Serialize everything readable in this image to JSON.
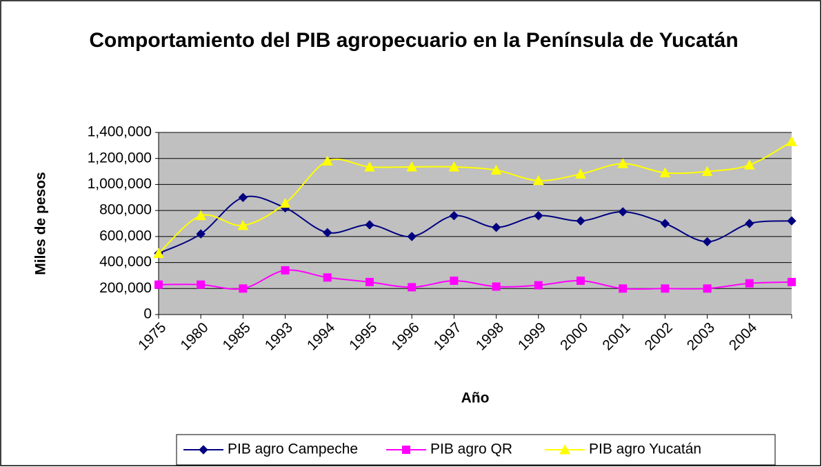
{
  "chart_data": {
    "type": "line",
    "title": "Comportamiento del PIB agropecuario en la Península de Yucatán",
    "x_label": "Año",
    "y_label": "Miles de pesos",
    "categories": [
      "1975",
      "1980",
      "1985",
      "1993",
      "1994",
      "1995",
      "1996",
      "1997",
      "1998",
      "1999",
      "2000",
      "2001",
      "2002",
      "2003",
      "2004",
      null
    ],
    "series": [
      {
        "name": "PIB agro Campeche",
        "color": "#000080",
        "marker": "diamond",
        "values": [
          470000,
          620000,
          900000,
          820000,
          630000,
          690000,
          600000,
          760000,
          670000,
          760000,
          720000,
          790000,
          700000,
          560000,
          700000,
          720000
        ]
      },
      {
        "name": "PIB agro QR",
        "color": "#ff00ff",
        "marker": "square",
        "values": [
          230000,
          230000,
          200000,
          340000,
          285000,
          250000,
          210000,
          260000,
          215000,
          225000,
          260000,
          200000,
          200000,
          200000,
          240000,
          250000
        ]
      },
      {
        "name": "PIB agro Yucatán",
        "color": "#ffff00",
        "marker": "triangle",
        "values": [
          470000,
          760000,
          685000,
          855000,
          1180000,
          1135000,
          1135000,
          1135000,
          1110000,
          1030000,
          1080000,
          1160000,
          1090000,
          1100000,
          1150000,
          1330000
        ]
      }
    ],
    "ylim": [
      0,
      1400000
    ],
    "yticks": [
      0,
      {
        "value": 200000,
        "label": "200,000"
      },
      {
        "value": 400000,
        "label": "400,000"
      },
      {
        "value": 600000,
        "label": "600,000"
      },
      {
        "value": 800000,
        "label": "800,000"
      },
      {
        "value": 1000000,
        "label": "1,000,000"
      },
      {
        "value": 1200000,
        "label": "1,200,000"
      },
      {
        "value": 1400000,
        "label": "1,400,000"
      }
    ],
    "grid": true,
    "smooth": true,
    "legend": "bottom"
  }
}
